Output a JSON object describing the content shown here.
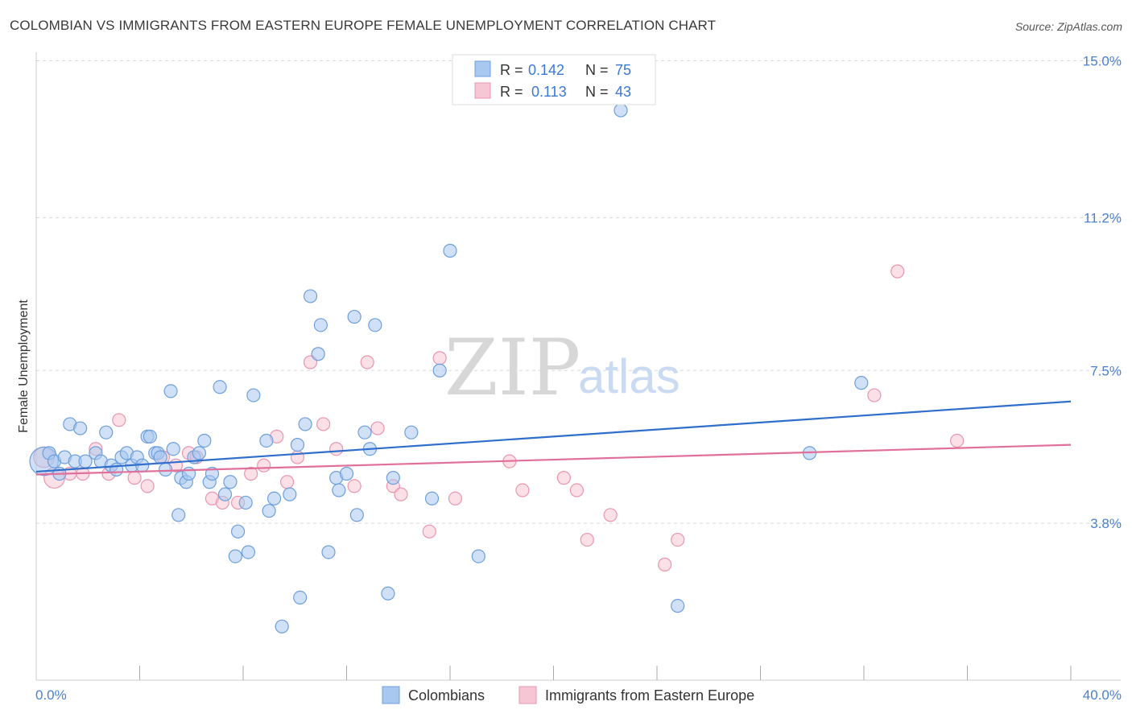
{
  "title": "COLOMBIAN VS IMMIGRANTS FROM EASTERN EUROPE FEMALE UNEMPLOYMENT CORRELATION CHART",
  "source": "Source: ZipAtlas.com",
  "watermark": {
    "zip": "ZIP",
    "atlas": "atlas"
  },
  "legend": {
    "r_label": "R =",
    "n_label": "N =",
    "rows": [
      {
        "r": "0.142",
        "n": "75"
      },
      {
        "r": "0.113",
        "n": "43"
      }
    ]
  },
  "colors": {
    "blue_fill": "#a9c8f0",
    "blue_stroke": "#6d9fdd",
    "blue_line": "#2f6fcb",
    "pink_fill": "#f7c6d4",
    "pink_stroke": "#e896b0",
    "pink_line": "#e0709a",
    "tick": "#4a7fd4",
    "grid": "#d8d8d8"
  },
  "chart_data": {
    "type": "scatter",
    "title": "COLOMBIAN VS IMMIGRANTS FROM EASTERN EUROPE FEMALE UNEMPLOYMENT CORRELATION CHART",
    "xlabel": "",
    "ylabel": "Female Unemployment",
    "xlim": [
      0,
      40
    ],
    "ylim": [
      0,
      15.4
    ],
    "x_tick_labels": [
      "0.0%",
      "40.0%"
    ],
    "y_ticks": [
      {
        "value": 3.8,
        "label": "3.8%"
      },
      {
        "value": 7.5,
        "label": "7.5%"
      },
      {
        "value": 11.2,
        "label": "11.2%"
      },
      {
        "value": 15.0,
        "label": "15.0%"
      }
    ],
    "x_minor_ticks": [
      4,
      8,
      12,
      16,
      20,
      24,
      28,
      32,
      36,
      40
    ],
    "legend_position": "bottom-center",
    "series": [
      {
        "name": "Colombians",
        "r": 0.142,
        "n": 75,
        "trend": {
          "x": [
            0,
            40
          ],
          "y": [
            5.05,
            6.75
          ]
        },
        "points": [
          [
            0.3,
            5.3,
            2.2
          ],
          [
            0.5,
            5.5,
            1
          ],
          [
            0.7,
            5.3,
            1
          ],
          [
            0.9,
            5.0,
            1
          ],
          [
            1.1,
            5.4,
            1
          ],
          [
            1.3,
            6.2,
            1
          ],
          [
            1.5,
            5.3,
            1
          ],
          [
            1.7,
            6.1,
            1
          ],
          [
            1.9,
            5.3,
            1
          ],
          [
            2.3,
            5.5,
            1
          ],
          [
            2.5,
            5.3,
            1
          ],
          [
            2.7,
            6.0,
            1
          ],
          [
            2.9,
            5.2,
            1
          ],
          [
            3.1,
            5.1,
            1
          ],
          [
            3.3,
            5.4,
            1
          ],
          [
            3.5,
            5.5,
            1
          ],
          [
            3.7,
            5.2,
            1
          ],
          [
            3.9,
            5.4,
            1
          ],
          [
            4.1,
            5.2,
            1
          ],
          [
            4.3,
            5.9,
            1
          ],
          [
            4.4,
            5.9,
            1
          ],
          [
            4.6,
            5.5,
            1
          ],
          [
            4.7,
            5.5,
            1
          ],
          [
            4.8,
            5.4,
            1
          ],
          [
            5.0,
            5.1,
            1
          ],
          [
            5.2,
            7.0,
            1
          ],
          [
            5.3,
            5.6,
            1
          ],
          [
            5.5,
            4.0,
            1
          ],
          [
            5.6,
            4.9,
            1
          ],
          [
            5.8,
            4.8,
            1
          ],
          [
            5.9,
            5.0,
            1
          ],
          [
            6.1,
            5.4,
            1
          ],
          [
            6.3,
            5.5,
            1
          ],
          [
            6.5,
            5.8,
            1
          ],
          [
            6.7,
            4.8,
            1
          ],
          [
            6.8,
            5.0,
            1
          ],
          [
            7.1,
            7.1,
            1
          ],
          [
            7.3,
            4.5,
            1
          ],
          [
            7.5,
            4.8,
            1
          ],
          [
            7.7,
            3.0,
            1
          ],
          [
            7.8,
            3.6,
            1
          ],
          [
            8.1,
            4.3,
            1
          ],
          [
            8.2,
            3.1,
            1
          ],
          [
            8.4,
            6.9,
            1
          ],
          [
            8.9,
            5.8,
            1
          ],
          [
            9.0,
            4.1,
            1
          ],
          [
            9.2,
            4.4,
            1
          ],
          [
            9.5,
            1.3,
            1
          ],
          [
            9.8,
            4.5,
            1
          ],
          [
            10.1,
            5.7,
            1
          ],
          [
            10.2,
            2.0,
            1
          ],
          [
            10.4,
            6.2,
            1
          ],
          [
            10.6,
            9.3,
            1
          ],
          [
            10.9,
            7.9,
            1
          ],
          [
            11.0,
            8.6,
            1
          ],
          [
            11.3,
            3.1,
            1
          ],
          [
            11.6,
            4.9,
            1
          ],
          [
            11.7,
            4.6,
            1
          ],
          [
            12.0,
            5.0,
            1
          ],
          [
            12.3,
            8.8,
            1
          ],
          [
            12.4,
            4.0,
            1
          ],
          [
            12.7,
            6.0,
            1
          ],
          [
            12.9,
            5.6,
            1
          ],
          [
            13.1,
            8.6,
            1
          ],
          [
            13.6,
            2.1,
            1
          ],
          [
            13.8,
            4.9,
            1
          ],
          [
            14.5,
            6.0,
            1
          ],
          [
            15.3,
            4.4,
            1
          ],
          [
            15.6,
            7.5,
            1
          ],
          [
            16.0,
            10.4,
            1
          ],
          [
            17.1,
            3.0,
            1
          ],
          [
            22.6,
            13.8,
            1
          ],
          [
            24.8,
            1.8,
            1
          ],
          [
            29.9,
            5.5,
            1
          ],
          [
            31.9,
            7.2,
            1
          ]
        ]
      },
      {
        "name": "Immigrants from Eastern Europe",
        "r": 0.113,
        "n": 43,
        "trend": {
          "x": [
            0,
            40
          ],
          "y": [
            4.98,
            5.7
          ]
        },
        "points": [
          [
            0.3,
            5.4,
            1.6
          ],
          [
            0.7,
            4.9,
            1.6
          ],
          [
            1.3,
            5.0,
            1
          ],
          [
            1.8,
            5.0,
            1
          ],
          [
            2.3,
            5.6,
            1
          ],
          [
            2.8,
            5.0,
            1
          ],
          [
            3.2,
            6.3,
            1
          ],
          [
            3.8,
            4.9,
            1
          ],
          [
            4.3,
            4.7,
            1
          ],
          [
            4.9,
            5.4,
            1
          ],
          [
            5.4,
            5.2,
            1
          ],
          [
            5.9,
            5.5,
            1
          ],
          [
            6.2,
            5.4,
            1
          ],
          [
            6.8,
            4.4,
            1
          ],
          [
            7.2,
            4.3,
            1
          ],
          [
            7.8,
            4.3,
            1
          ],
          [
            8.3,
            5.0,
            1
          ],
          [
            8.8,
            5.2,
            1
          ],
          [
            9.3,
            5.9,
            1
          ],
          [
            9.7,
            4.8,
            1
          ],
          [
            10.1,
            5.4,
            1
          ],
          [
            10.6,
            7.7,
            1
          ],
          [
            11.1,
            6.2,
            1
          ],
          [
            11.6,
            5.6,
            1
          ],
          [
            12.3,
            4.7,
            1
          ],
          [
            12.8,
            7.7,
            1
          ],
          [
            13.2,
            6.1,
            1
          ],
          [
            13.8,
            4.7,
            1
          ],
          [
            14.1,
            4.5,
            1
          ],
          [
            15.2,
            3.6,
            1
          ],
          [
            15.6,
            7.8,
            1
          ],
          [
            16.2,
            4.4,
            1
          ],
          [
            18.3,
            5.3,
            1
          ],
          [
            18.8,
            4.6,
            1
          ],
          [
            20.4,
            4.9,
            1
          ],
          [
            20.9,
            4.6,
            1
          ],
          [
            21.3,
            3.4,
            1
          ],
          [
            22.2,
            4.0,
            1
          ],
          [
            24.3,
            2.8,
            1
          ],
          [
            24.8,
            3.4,
            1
          ],
          [
            32.4,
            6.9,
            1
          ],
          [
            33.3,
            9.9,
            1
          ],
          [
            35.6,
            5.8,
            1
          ]
        ]
      }
    ]
  },
  "bottom_legend": [
    "Colombians",
    "Immigrants from Eastern Europe"
  ]
}
